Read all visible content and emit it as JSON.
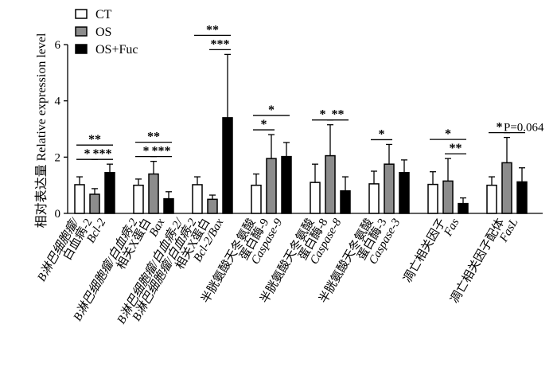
{
  "chart_data": {
    "type": "bar",
    "ylabel": "相对表达量 Relative expression level",
    "ylim": [
      0,
      6
    ],
    "yticks": [
      "0",
      "2",
      "4",
      "6"
    ],
    "legend": {
      "position": "top-left",
      "entries": [
        {
          "name": "CT",
          "color": "#ffffff"
        },
        {
          "name": "OS",
          "color": "#8c8c8c"
        },
        {
          "name": "OS+Fuc",
          "color": "#000000"
        }
      ]
    },
    "categories": [
      {
        "lines": [
          "B淋巴细胞瘤/",
          "白血病-2",
          "Bcl-2"
        ]
      },
      {
        "lines": [
          "B淋巴细胞瘤/白血病-2",
          "相关X蛋白",
          "Bax"
        ]
      },
      {
        "lines": [
          "B淋巴细胞瘤/白血病-2/",
          "B淋巴细胞瘤/白血病-2",
          "相关X蛋白",
          "Bcl-2/Bax"
        ]
      },
      {
        "lines": [
          "半胱氨酸天冬氨酸",
          "蛋白酶-9",
          "Caspase-9"
        ]
      },
      {
        "lines": [
          "半胱氨酸天冬氨酸",
          "蛋白酶-8",
          "Caspase-8"
        ]
      },
      {
        "lines": [
          "半胱氨酸天冬氨酸",
          "蛋白酶-3",
          "Caspase-3"
        ]
      },
      {
        "lines": [
          "凋亡相关因子",
          "Fas"
        ]
      },
      {
        "lines": [
          "凋亡相关因子配体",
          "FasL"
        ]
      }
    ],
    "series": [
      {
        "name": "CT",
        "values": [
          1.02,
          1.0,
          1.02,
          1.0,
          1.1,
          1.05,
          1.03,
          1.0
        ],
        "errors": [
          0.28,
          0.22,
          0.28,
          0.4,
          0.65,
          0.45,
          0.45,
          0.3
        ]
      },
      {
        "name": "OS",
        "values": [
          0.68,
          1.4,
          0.5,
          1.95,
          2.05,
          1.75,
          1.15,
          1.8
        ],
        "errors": [
          0.2,
          0.45,
          0.15,
          0.85,
          1.1,
          0.7,
          0.8,
          0.9
        ]
      },
      {
        "name": "OS+Fuc",
        "values": [
          1.45,
          0.52,
          3.4,
          2.02,
          0.8,
          1.45,
          0.35,
          1.12
        ],
        "errors": [
          0.3,
          0.25,
          2.25,
          0.5,
          0.5,
          0.45,
          0.2,
          0.5
        ]
      }
    ],
    "significance": [
      {
        "group": 0,
        "from": 0,
        "to": 2,
        "text": "**"
      },
      {
        "group": 0,
        "from": 0,
        "to": 1,
        "text": "*"
      },
      {
        "group": 0,
        "from": 1,
        "to": 2,
        "text": "***"
      },
      {
        "group": 1,
        "from": 0,
        "to": 2,
        "text": "**"
      },
      {
        "group": 1,
        "from": 0,
        "to": 1,
        "text": "*"
      },
      {
        "group": 1,
        "from": 1,
        "to": 2,
        "text": "***"
      },
      {
        "group": 2,
        "from": 0,
        "to": 2,
        "text": "**"
      },
      {
        "group": 2,
        "from": 1,
        "to": 2,
        "text": "***"
      },
      {
        "group": 3,
        "from": 0,
        "to": 2,
        "text": "*"
      },
      {
        "group": 3,
        "from": 0,
        "to": 1,
        "text": "*"
      },
      {
        "group": 4,
        "from": 0,
        "to": 1,
        "text": "*"
      },
      {
        "group": 4,
        "from": 1,
        "to": 2,
        "text": "**"
      },
      {
        "group": 5,
        "from": 0,
        "to": 1,
        "text": "*"
      },
      {
        "group": 6,
        "from": 0,
        "to": 2,
        "text": "*"
      },
      {
        "group": 6,
        "from": 1,
        "to": 2,
        "text": "**"
      },
      {
        "group": 7,
        "from": 0,
        "to": 1,
        "text": "*"
      },
      {
        "group": 7,
        "from": 1,
        "to": 2,
        "text": "P=0.064"
      }
    ]
  }
}
